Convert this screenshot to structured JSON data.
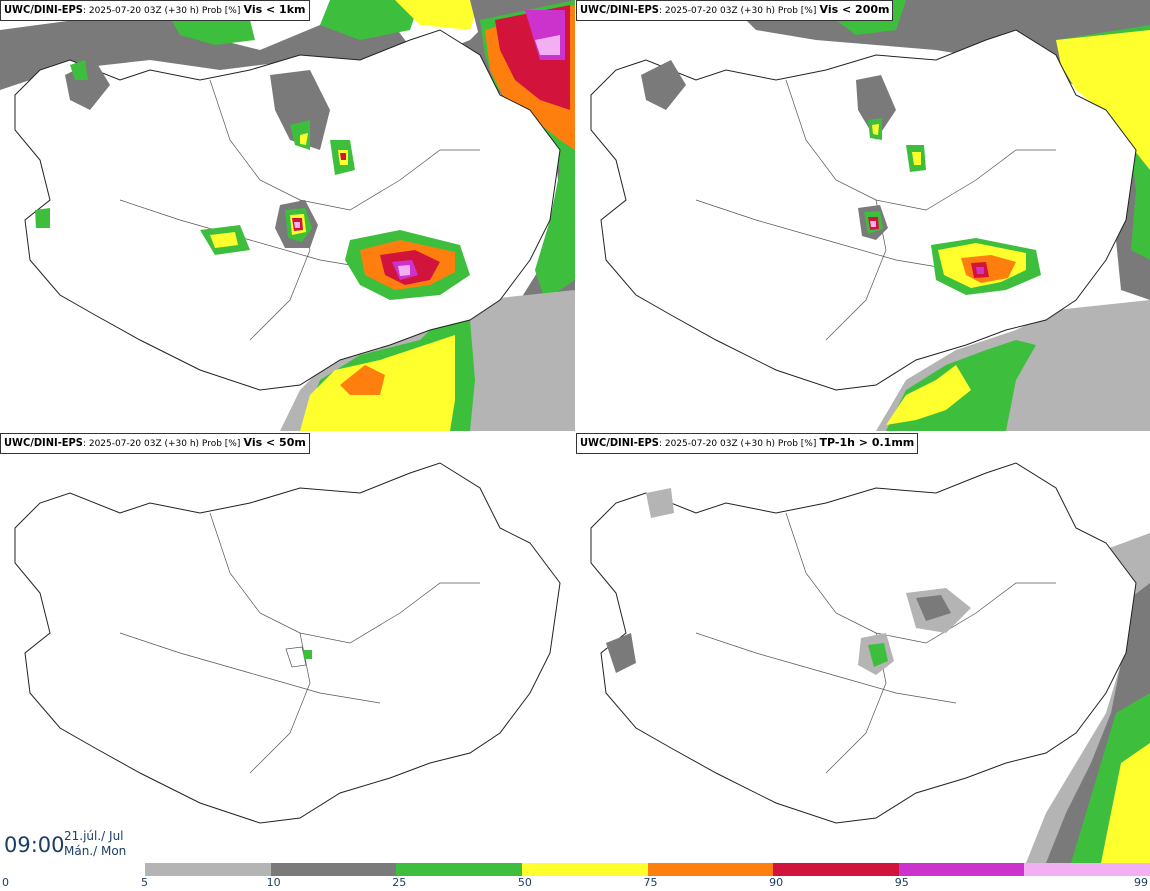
{
  "panels": [
    {
      "model": "UWC/DINI-EPS",
      "meta": ": 2025-07-20 03Z (+30 h) Prob [%]",
      "variable": "Vis < 1km"
    },
    {
      "model": "UWC/DINI-EPS",
      "meta": ": 2025-07-20 03Z (+30 h) Prob [%]",
      "variable": "Vis < 200m"
    },
    {
      "model": "UWC/DINI-EPS",
      "meta": ": 2025-07-20 03Z (+30 h) Prob [%]",
      "variable": "Vis < 50m"
    },
    {
      "model": "UWC/DINI-EPS",
      "meta": ": 2025-07-20 03Z (+30 h) Prob [%]",
      "variable": "TP-1h > 0.1mm"
    }
  ],
  "valid_time": {
    "clock": "09:00",
    "date_line1": "21.júl./ Jul",
    "date_line2": "Mán./ Mon"
  },
  "legend": {
    "ticks": [
      "0",
      "5",
      "10",
      "25",
      "50",
      "75",
      "90",
      "95",
      "99"
    ],
    "colors": [
      "#b4b4b4",
      "#7a7a7a",
      "#3dbf3d",
      "#ffff2e",
      "#ff7f0e",
      "#d2143c",
      "#cc33cc",
      "#f2b0f2"
    ]
  },
  "map_colors": {
    "coast": "#222222",
    "land": "#ffffff"
  }
}
